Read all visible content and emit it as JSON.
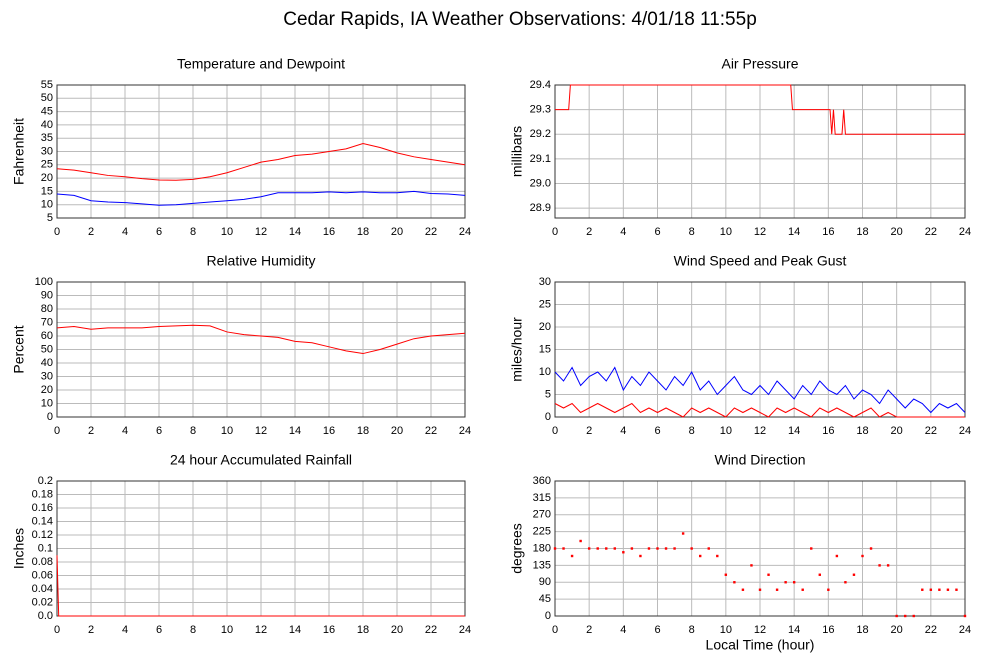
{
  "title": "Cedar Rapids, IA Weather Observations: 4/01/18 11:55p",
  "chart_data": [
    {
      "type": "line",
      "title": "Temperature and Dewpoint",
      "ylabel": "Fahrenheit",
      "x": [
        0,
        1,
        2,
        3,
        4,
        5,
        6,
        7,
        8,
        9,
        10,
        11,
        12,
        13,
        14,
        15,
        16,
        17,
        18,
        19,
        20,
        21,
        22,
        23,
        24
      ],
      "series": [
        {
          "color": "#ff0000",
          "values": [
            23.5,
            23,
            22,
            21,
            20.5,
            19.8,
            19.3,
            19.2,
            19.5,
            20.5,
            22,
            24,
            26,
            27,
            28.5,
            29,
            30,
            31,
            33,
            31.5,
            29.5,
            28,
            27,
            26,
            25
          ]
        },
        {
          "color": "#0000ff",
          "values": [
            14,
            13.5,
            11.5,
            11,
            10.8,
            10.3,
            9.8,
            10,
            10.5,
            11,
            11.5,
            12,
            13,
            14.5,
            14.5,
            14.5,
            14.8,
            14.5,
            14.8,
            14.5,
            14.5,
            15,
            14.2,
            14,
            13.5
          ]
        }
      ],
      "xlim": [
        0,
        24
      ],
      "xticks": [
        0,
        2,
        4,
        6,
        8,
        10,
        12,
        14,
        16,
        18,
        20,
        22,
        24
      ],
      "ylim": [
        5,
        55
      ],
      "yticks": [
        5,
        10,
        15,
        20,
        25,
        30,
        35,
        40,
        45,
        50,
        55
      ],
      "grid": true
    },
    {
      "type": "line",
      "title": "Air Pressure",
      "ylabel": "millibars",
      "x": [
        0,
        0.8,
        0.9,
        13.8,
        13.9,
        16.1,
        16.2,
        16.3,
        16.4,
        16.8,
        16.9,
        17.0,
        24
      ],
      "series": [
        {
          "color": "#ff0000",
          "values": [
            29.3,
            29.3,
            29.4,
            29.4,
            29.3,
            29.3,
            29.2,
            29.3,
            29.2,
            29.2,
            29.3,
            29.2,
            29.2
          ]
        }
      ],
      "xlim": [
        0,
        24
      ],
      "xticks": [
        0,
        2,
        4,
        6,
        8,
        10,
        12,
        14,
        16,
        18,
        20,
        22,
        24
      ],
      "ylim": [
        28.86,
        29.4
      ],
      "yticks": [
        28.9,
        {
          "value": 29.0,
          "label": "29.0"
        },
        29.1,
        29.2,
        29.3,
        29.4
      ],
      "grid": true
    },
    {
      "type": "line",
      "title": "Relative Humidity",
      "ylabel": "Percent",
      "x": [
        0,
        1,
        2,
        3,
        4,
        5,
        6,
        7,
        8,
        9,
        10,
        11,
        12,
        13,
        14,
        15,
        16,
        17,
        18,
        19,
        20,
        21,
        22,
        23,
        24
      ],
      "series": [
        {
          "color": "#ff0000",
          "values": [
            66,
            67,
            65,
            66,
            66,
            66,
            67,
            67.5,
            68,
            67.5,
            63,
            61,
            60,
            59,
            56,
            55,
            52,
            49,
            47,
            50,
            54,
            58,
            60,
            61,
            62
          ]
        }
      ],
      "xlim": [
        0,
        24
      ],
      "xticks": [
        0,
        2,
        4,
        6,
        8,
        10,
        12,
        14,
        16,
        18,
        20,
        22,
        24
      ],
      "ylim": [
        0,
        100
      ],
      "yticks": [
        0,
        10,
        20,
        30,
        40,
        50,
        60,
        70,
        80,
        90,
        100
      ],
      "grid": true
    },
    {
      "type": "line",
      "title": "Wind Speed and Peak Gust",
      "ylabel": "miles/hour",
      "x": [
        0,
        0.5,
        1,
        1.5,
        2,
        2.5,
        3,
        3.5,
        4,
        4.5,
        5,
        5.5,
        6,
        6.5,
        7,
        7.5,
        8,
        8.5,
        9,
        9.5,
        10,
        10.5,
        11,
        11.5,
        12,
        12.5,
        13,
        13.5,
        14,
        14.5,
        15,
        15.5,
        16,
        16.5,
        17,
        17.5,
        18,
        18.5,
        19,
        19.5,
        20,
        20.5,
        21,
        21.5,
        22,
        22.5,
        23,
        23.5,
        24
      ],
      "series": [
        {
          "color": "#0000ff",
          "values": [
            10,
            8,
            11,
            7,
            9,
            10,
            8,
            11,
            6,
            9,
            7,
            10,
            8,
            6,
            9,
            7,
            10,
            6,
            8,
            5,
            7,
            9,
            6,
            5,
            7,
            5,
            8,
            6,
            4,
            7,
            5,
            8,
            6,
            5,
            7,
            4,
            6,
            5,
            3,
            6,
            4,
            2,
            4,
            3,
            1,
            3,
            2,
            3,
            1
          ]
        },
        {
          "color": "#ff0000",
          "values": [
            3,
            2,
            3,
            1,
            2,
            3,
            2,
            1,
            2,
            3,
            1,
            2,
            1,
            2,
            1,
            0,
            2,
            1,
            2,
            1,
            0,
            2,
            1,
            2,
            1,
            0,
            2,
            1,
            2,
            1,
            0,
            2,
            1,
            2,
            1,
            0,
            1,
            2,
            0,
            1,
            0,
            0,
            0,
            0,
            0,
            0,
            0,
            0,
            0
          ]
        }
      ],
      "xlim": [
        0,
        24
      ],
      "xticks": [
        0,
        2,
        4,
        6,
        8,
        10,
        12,
        14,
        16,
        18,
        20,
        22,
        24
      ],
      "ylim": [
        0,
        30
      ],
      "yticks": [
        0,
        5,
        10,
        15,
        20,
        25,
        30
      ],
      "grid": true
    },
    {
      "type": "line",
      "title": "24 hour Accumulated Rainfall",
      "ylabel": "Inches",
      "x": [
        0,
        0.1,
        24
      ],
      "series": [
        {
          "color": "#ff0000",
          "values": [
            0.09,
            0,
            0
          ]
        }
      ],
      "xlim": [
        0,
        24
      ],
      "xticks": [
        0,
        2,
        4,
        6,
        8,
        10,
        12,
        14,
        16,
        18,
        20,
        22,
        24
      ],
      "ylim": [
        0,
        0.2
      ],
      "yticks": [
        {
          "value": 0,
          "label": "0.0"
        },
        0.02,
        0.04,
        0.06,
        0.08,
        0.1,
        0.12,
        0.14,
        0.16,
        0.18,
        0.2
      ],
      "grid": true
    },
    {
      "type": "scatter",
      "title": "Wind Direction",
      "ylabel": "degrees",
      "xlabel": "Local Time (hour)",
      "x": [
        0,
        0.5,
        1,
        1.5,
        2,
        2.5,
        3,
        3.5,
        4,
        4.5,
        5,
        5.5,
        6,
        6.5,
        7,
        7.5,
        8,
        8.5,
        9,
        9.5,
        10,
        10.5,
        11,
        11.5,
        12,
        12.5,
        13,
        13.5,
        14,
        14.5,
        15,
        15.5,
        16,
        16.5,
        17,
        17.5,
        18,
        18.5,
        19,
        19.5,
        20,
        20.5,
        21,
        21.5,
        22,
        22.5,
        23,
        23.5,
        24
      ],
      "series": [
        {
          "color": "#ff0000",
          "values": [
            180,
            180,
            160,
            200,
            180,
            180,
            180,
            180,
            170,
            180,
            160,
            180,
            180,
            180,
            180,
            220,
            180,
            160,
            180,
            160,
            110,
            90,
            70,
            135,
            70,
            110,
            70,
            90,
            90,
            70,
            180,
            110,
            70,
            160,
            90,
            110,
            160,
            180,
            135,
            135,
            0,
            0,
            0,
            70,
            70,
            70,
            70,
            70,
            0
          ]
        }
      ],
      "xlim": [
        0,
        24
      ],
      "xticks": [
        0,
        2,
        4,
        6,
        8,
        10,
        12,
        14,
        16,
        18,
        20,
        22,
        24
      ],
      "ylim": [
        0,
        360
      ],
      "yticks": [
        0,
        45,
        90,
        135,
        180,
        225,
        270,
        315,
        360
      ],
      "grid": true
    }
  ]
}
